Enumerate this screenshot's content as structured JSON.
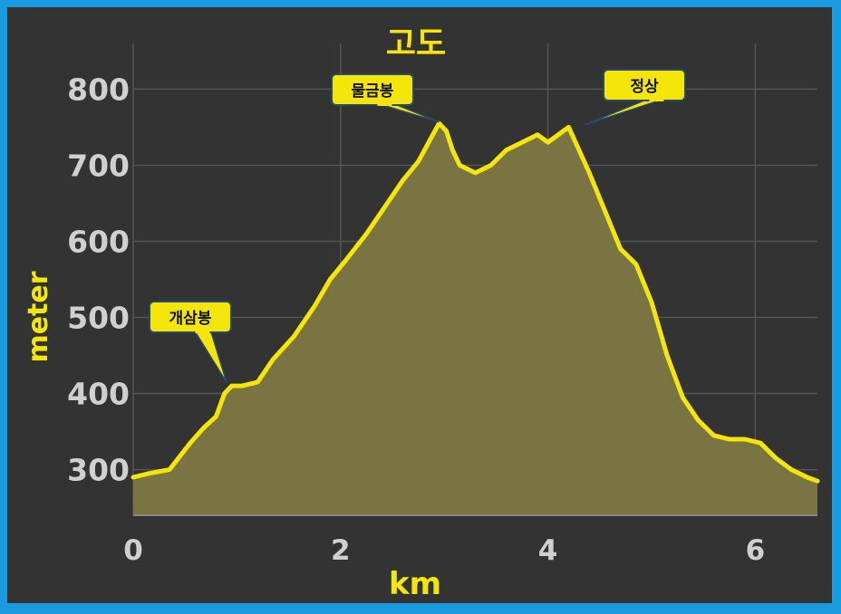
{
  "colors": {
    "border": "#1a9be0",
    "background": "#333333",
    "line": "#f5e60a",
    "fill": "#7a7443",
    "grid": "#555555",
    "text": "#d0d0d0",
    "callout": "#f5e60a"
  },
  "chart_data": {
    "type": "area",
    "title": "고도",
    "xlabel": "km",
    "ylabel": "meter",
    "xlim": [
      0,
      6.6
    ],
    "ylim": [
      240,
      860
    ],
    "x_ticks": [
      "0",
      "2",
      "4",
      "6"
    ],
    "y_ticks": [
      "300",
      "400",
      "500",
      "600",
      "700",
      "800"
    ],
    "grid": true,
    "legend": "none",
    "series": [
      {
        "x": [
          0,
          0.15,
          0.35,
          0.55,
          0.68,
          0.8,
          0.88,
          0.95,
          1.05,
          1.2,
          1.35,
          1.55,
          1.75,
          1.9,
          2.05,
          2.25,
          2.45,
          2.6,
          2.75,
          2.85,
          2.95,
          3.02,
          3.08,
          3.15,
          3.3,
          3.45,
          3.6,
          3.75,
          3.9,
          4.0,
          4.1,
          4.2,
          4.3,
          4.4,
          4.55,
          4.7,
          4.85,
          5.0,
          5.15,
          5.3,
          5.45,
          5.6,
          5.75,
          5.9,
          6.05,
          6.2,
          6.35,
          6.5,
          6.6
        ],
        "y": [
          290,
          295,
          300,
          335,
          355,
          370,
          400,
          410,
          410,
          415,
          445,
          475,
          515,
          550,
          575,
          610,
          650,
          680,
          705,
          730,
          755,
          745,
          720,
          700,
          690,
          700,
          720,
          730,
          740,
          730,
          740,
          750,
          720,
          690,
          640,
          590,
          570,
          520,
          450,
          395,
          365,
          345,
          340,
          340,
          335,
          315,
          300,
          290,
          285
        ]
      }
    ],
    "annotations": [
      {
        "label": "개삼봉",
        "x": 0.9,
        "y": 410
      },
      {
        "label": "물금봉",
        "x": 2.95,
        "y": 752
      },
      {
        "label": "정상",
        "x": 4.35,
        "y": 748
      }
    ]
  }
}
